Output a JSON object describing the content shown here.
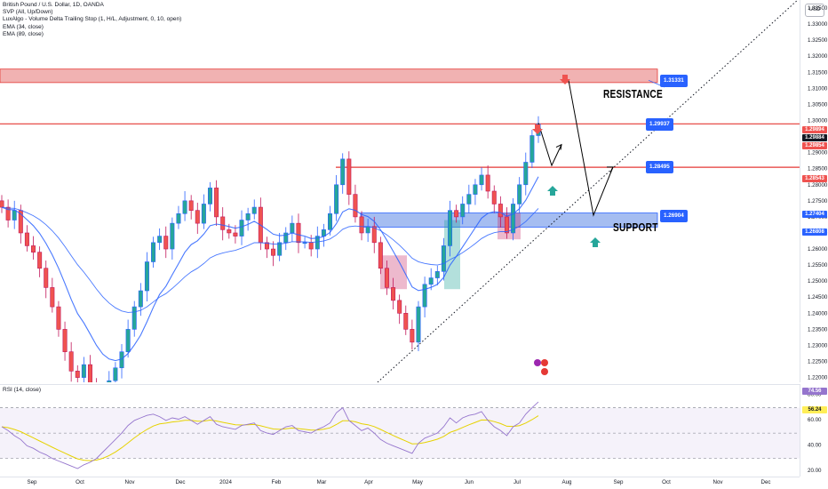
{
  "legend": {
    "title": "British Pound / U.S. Dollar, 1D, OANDA",
    "indicators": [
      "SVP (All, Up/Down)",
      "LuxAlgo - Volume Delta Trailing Stop (1, H/L, Adjustment, 0, 10, open)",
      "EMA (34, close)",
      "EMA (89, close)"
    ]
  },
  "currency_button": "USD",
  "colors": {
    "up": "#26a69a",
    "down": "#ef5350",
    "bull_candle": "#2962ff",
    "bear_candle": "#c2185b",
    "resistance": "#e57373",
    "support": "#5b86e5",
    "ema34": "#2962ff",
    "ema89": "#2962ff",
    "rsi": "#9575cd",
    "rsi_ma": "#ffee58",
    "trend": "#131722"
  },
  "price_ticks": [
    "1.33500",
    "1.33000",
    "1.32500",
    "1.32000",
    "1.31500",
    "1.31000",
    "1.30500",
    "1.30000",
    "1.29500",
    "1.29000",
    "1.28500",
    "1.28000",
    "1.27500",
    "1.27000",
    "1.26500",
    "1.26000",
    "1.25500",
    "1.25000",
    "1.24500",
    "1.24000",
    "1.23500",
    "1.23000",
    "1.22500",
    "1.22000"
  ],
  "price_tags": [
    {
      "text": "1.29894",
      "kind": "red",
      "value": 1.29894
    },
    {
      "text": "1.29884",
      "kind": "dark",
      "value": 1.29884
    },
    {
      "text": "1.29854",
      "kind": "red",
      "value": 1.29854
    },
    {
      "text": "1.28543",
      "kind": "red",
      "value": 1.28543
    },
    {
      "text": "1.27404",
      "kind": "blue",
      "value": 1.27404
    },
    {
      "text": "1.26808",
      "kind": "blue",
      "value": 1.26808
    }
  ],
  "time_labels": [
    "Sep",
    "Oct",
    "Nov",
    "Dec",
    "2024",
    "Feb",
    "Mar",
    "Apr",
    "May",
    "Jun",
    "Jul",
    "Aug",
    "Sep",
    "Oct",
    "Nov",
    "Dec"
  ],
  "annotations": {
    "resistance_label": "RESISTANCE",
    "support_label": "SUPPORT",
    "levels": [
      "1.31331",
      "1.29937",
      "1.28495",
      "1.26904"
    ]
  },
  "rsi": {
    "label": "RSI (14, close)",
    "ticks": [
      "80.00",
      "60.00",
      "40.00",
      "20.00"
    ],
    "tags": [
      {
        "text": "74.56",
        "kind": "purple"
      },
      {
        "text": "56.24",
        "kind": "yellow"
      }
    ]
  },
  "chart_data": {
    "type": "candlestick",
    "title": "British Pound / U.S. Dollar, 1D, OANDA",
    "ylim": [
      1.2185,
      1.3375
    ],
    "x_range": [
      "Aug 2023",
      "Dec 2024"
    ],
    "levels": {
      "resistance": 1.31331,
      "support": 1.26904,
      "mid": 1.28543,
      "current": 1.29894
    },
    "close_series": [
      1.273,
      1.269,
      1.272,
      1.265,
      1.261,
      1.259,
      1.254,
      1.248,
      1.242,
      1.235,
      1.228,
      1.222,
      1.22,
      1.224,
      1.218,
      1.214,
      1.215,
      1.219,
      1.223,
      1.228,
      1.235,
      1.242,
      1.247,
      1.256,
      1.262,
      1.264,
      1.26,
      1.268,
      1.271,
      1.275,
      1.272,
      1.268,
      1.274,
      1.279,
      1.27,
      1.266,
      1.265,
      1.264,
      1.269,
      1.271,
      1.273,
      1.262,
      1.26,
      1.258,
      1.262,
      1.265,
      1.268,
      1.262,
      1.262,
      1.26,
      1.264,
      1.266,
      1.271,
      1.28,
      1.288,
      1.277,
      1.27,
      1.265,
      1.267,
      1.262,
      1.254,
      1.248,
      1.244,
      1.24,
      1.235,
      1.231,
      1.242,
      1.249,
      1.251,
      1.253,
      1.261,
      1.272,
      1.27,
      1.274,
      1.277,
      1.28,
      1.283,
      1.278,
      1.274,
      1.27,
      1.265,
      1.274,
      1.28,
      1.287,
      1.2953,
      1.2989
    ],
    "rsi_series": [
      55,
      52,
      48,
      45,
      40,
      38,
      35,
      33,
      30,
      28,
      26,
      24,
      22,
      25,
      27,
      30,
      35,
      40,
      45,
      50,
      56,
      60,
      62,
      64,
      65,
      63,
      60,
      62,
      61,
      63,
      60,
      57,
      60,
      63,
      57,
      55,
      54,
      53,
      56,
      57,
      58,
      52,
      50,
      49,
      52,
      55,
      56,
      52,
      51,
      50,
      53,
      55,
      58,
      66,
      70,
      60,
      56,
      52,
      54,
      50,
      45,
      42,
      40,
      38,
      36,
      34,
      42,
      46,
      48,
      50,
      55,
      62,
      58,
      62,
      64,
      65,
      67,
      60,
      55,
      52,
      48,
      55,
      58,
      65,
      70,
      74.56
    ],
    "rsi_ylim": [
      15,
      88
    ]
  }
}
